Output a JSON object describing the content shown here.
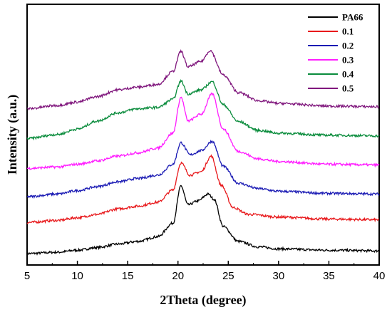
{
  "chart_data": {
    "type": "line",
    "xlabel": "2Theta (degree)",
    "ylabel": "Intensity (a.u.)",
    "xlim": [
      5,
      40
    ],
    "xticks": [
      5,
      10,
      15,
      20,
      25,
      30,
      35,
      40
    ],
    "y_tick_labels": false,
    "grid": false,
    "legend_position": "top-right",
    "series": [
      {
        "name": "PA66",
        "color": "#000000",
        "offset": 0.0,
        "profile": [
          [
            5,
            0.0
          ],
          [
            8,
            0.02
          ],
          [
            10,
            0.05
          ],
          [
            12,
            0.09
          ],
          [
            14,
            0.14
          ],
          [
            16,
            0.18
          ],
          [
            18,
            0.25
          ],
          [
            19.5,
            0.45
          ],
          [
            20.3,
            1.0
          ],
          [
            21.0,
            0.72
          ],
          [
            22,
            0.78
          ],
          [
            23.0,
            0.88
          ],
          [
            23.6,
            0.8
          ],
          [
            24.5,
            0.4
          ],
          [
            26,
            0.18
          ],
          [
            28,
            0.1
          ],
          [
            30,
            0.07
          ],
          [
            35,
            0.05
          ],
          [
            40,
            0.04
          ]
        ]
      },
      {
        "name": "0.1",
        "color": "#e8191c",
        "offset": 0.46,
        "profile": [
          [
            5,
            0.0
          ],
          [
            8,
            0.03
          ],
          [
            10,
            0.07
          ],
          [
            12,
            0.12
          ],
          [
            14,
            0.2
          ],
          [
            16,
            0.24
          ],
          [
            18,
            0.3
          ],
          [
            19.5,
            0.48
          ],
          [
            20.3,
            0.88
          ],
          [
            21.2,
            0.7
          ],
          [
            22.3,
            0.75
          ],
          [
            23.3,
            0.98
          ],
          [
            24.3,
            0.55
          ],
          [
            25.5,
            0.22
          ],
          [
            27,
            0.12
          ],
          [
            30,
            0.08
          ],
          [
            35,
            0.05
          ],
          [
            40,
            0.04
          ]
        ]
      },
      {
        "name": "0.2",
        "color": "#1b1bb4",
        "offset": 0.84,
        "profile": [
          [
            5,
            0.0
          ],
          [
            8,
            0.04
          ],
          [
            10,
            0.09
          ],
          [
            12,
            0.15
          ],
          [
            14,
            0.22
          ],
          [
            16,
            0.27
          ],
          [
            18,
            0.32
          ],
          [
            19.5,
            0.48
          ],
          [
            20.3,
            0.8
          ],
          [
            21.2,
            0.62
          ],
          [
            22.3,
            0.68
          ],
          [
            23.4,
            0.82
          ],
          [
            24.5,
            0.45
          ],
          [
            26,
            0.2
          ],
          [
            28,
            0.12
          ],
          [
            30,
            0.08
          ],
          [
            35,
            0.05
          ],
          [
            40,
            0.04
          ]
        ]
      },
      {
        "name": "0.3",
        "color": "#ff1dff",
        "offset": 1.26,
        "profile": [
          [
            5,
            0.0
          ],
          [
            8,
            0.02
          ],
          [
            10,
            0.06
          ],
          [
            12,
            0.11
          ],
          [
            14,
            0.18
          ],
          [
            16,
            0.23
          ],
          [
            18,
            0.3
          ],
          [
            19.5,
            0.52
          ],
          [
            20.3,
            1.05
          ],
          [
            21.0,
            0.7
          ],
          [
            22.3,
            0.8
          ],
          [
            23.4,
            1.1
          ],
          [
            24.5,
            0.58
          ],
          [
            26,
            0.25
          ],
          [
            28,
            0.14
          ],
          [
            30,
            0.1
          ],
          [
            35,
            0.06
          ],
          [
            40,
            0.05
          ]
        ]
      },
      {
        "name": "0.4",
        "color": "#0a8c3c",
        "offset": 1.7,
        "profile": [
          [
            5,
            0.0
          ],
          [
            8,
            0.06
          ],
          [
            10,
            0.14
          ],
          [
            12,
            0.26
          ],
          [
            14,
            0.38
          ],
          [
            16,
            0.44
          ],
          [
            18,
            0.46
          ],
          [
            19.5,
            0.58
          ],
          [
            20.3,
            0.85
          ],
          [
            21.0,
            0.66
          ],
          [
            22.3,
            0.72
          ],
          [
            23.4,
            0.84
          ],
          [
            24.5,
            0.5
          ],
          [
            26,
            0.25
          ],
          [
            28,
            0.12
          ],
          [
            30,
            0.08
          ],
          [
            35,
            0.05
          ],
          [
            40,
            0.04
          ]
        ]
      },
      {
        "name": "0.5",
        "color": "#80177d",
        "offset": 2.14,
        "profile": [
          [
            5,
            0.0
          ],
          [
            8,
            0.05
          ],
          [
            10,
            0.1
          ],
          [
            12,
            0.18
          ],
          [
            14,
            0.28
          ],
          [
            16,
            0.32
          ],
          [
            18,
            0.36
          ],
          [
            19.5,
            0.55
          ],
          [
            20.3,
            0.85
          ],
          [
            21.0,
            0.62
          ],
          [
            22.3,
            0.7
          ],
          [
            23.2,
            0.86
          ],
          [
            24.5,
            0.5
          ],
          [
            26,
            0.24
          ],
          [
            28,
            0.12
          ],
          [
            30,
            0.08
          ],
          [
            35,
            0.04
          ],
          [
            40,
            0.03
          ]
        ]
      }
    ]
  }
}
